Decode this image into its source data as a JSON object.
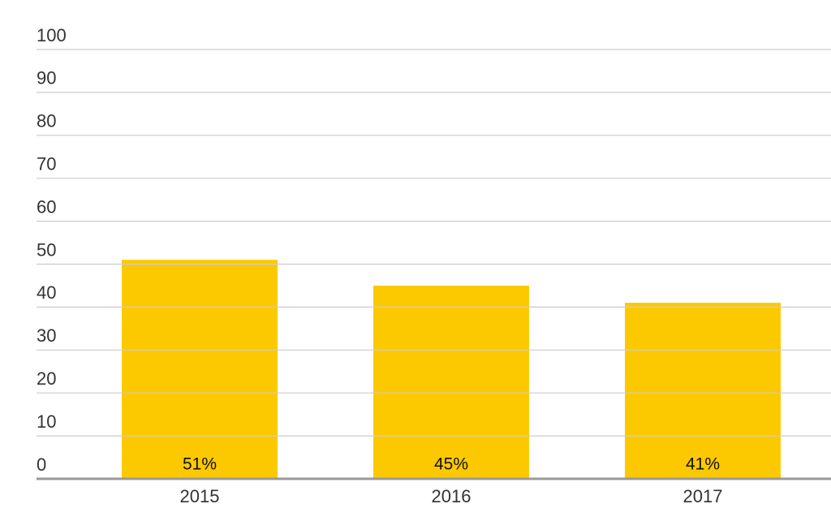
{
  "chart_data": {
    "type": "bar",
    "categories": [
      "2015",
      "2016",
      "2017"
    ],
    "values": [
      51,
      45,
      41
    ],
    "value_labels": [
      "51%",
      "45%",
      "41%"
    ],
    "color": "#fcc900",
    "ylim": [
      0,
      100
    ],
    "yticks": [
      0,
      10,
      20,
      30,
      40,
      50,
      60,
      70,
      80,
      90,
      100
    ],
    "grid": true
  }
}
